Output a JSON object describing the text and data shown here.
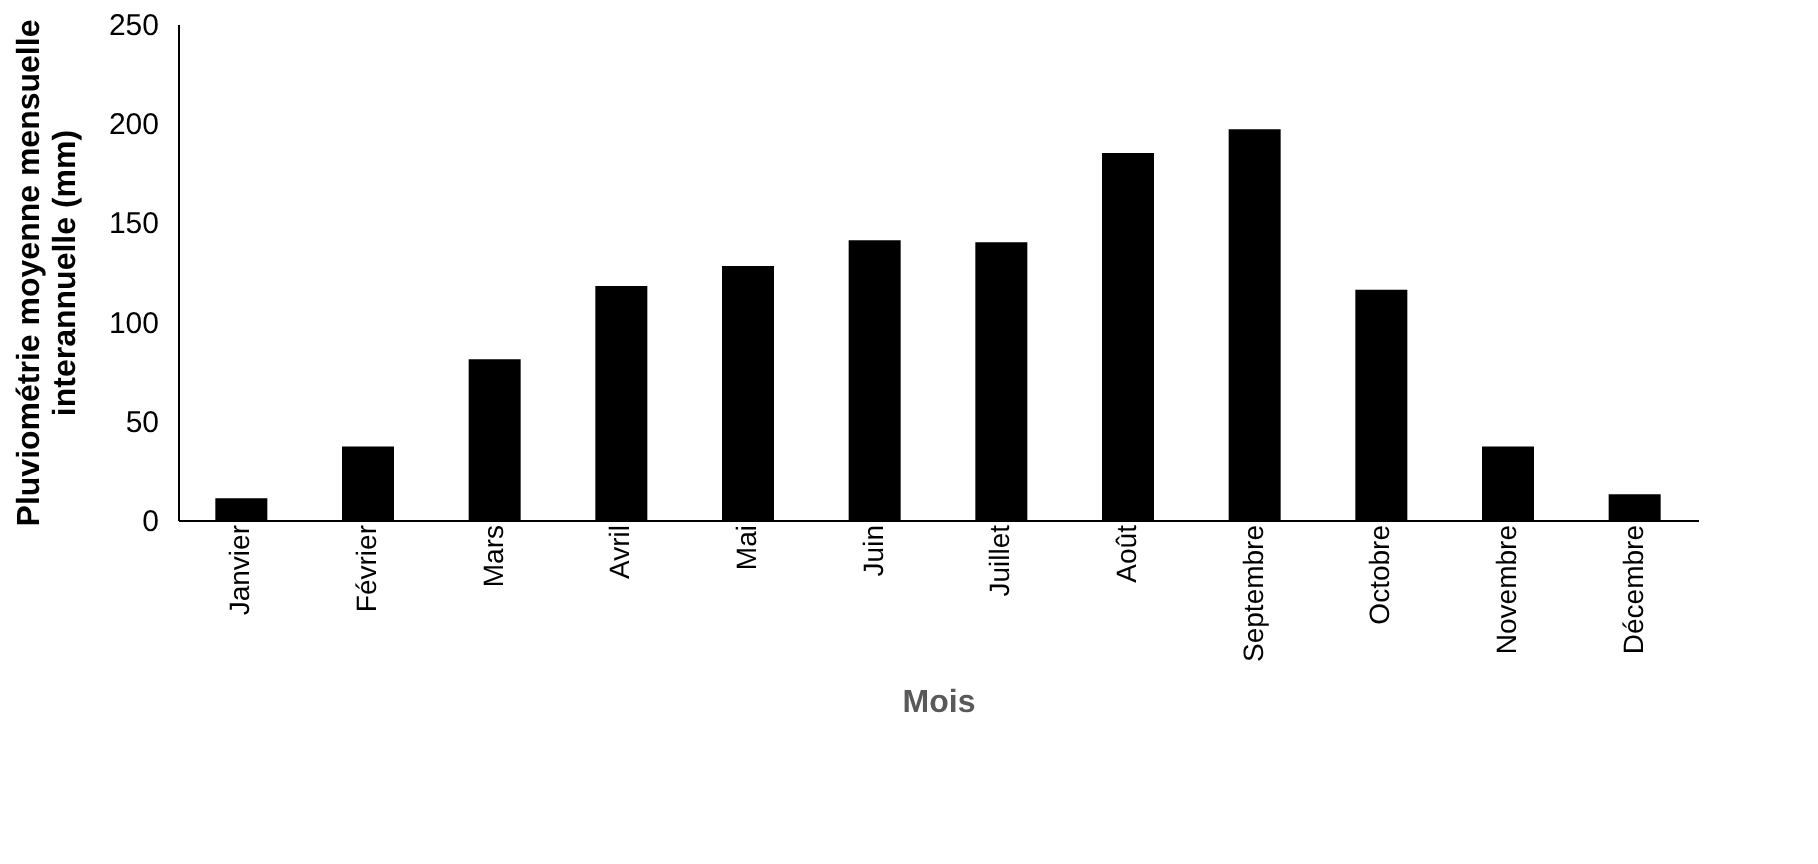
{
  "chart_data": {
    "type": "bar",
    "xlabel": "Mois",
    "ylabel": "Pluviométrie moyenne mensuelle\ninterannuelle (mm)",
    "categories": [
      "Janvier",
      "Février",
      "Mars",
      "Avril",
      "Mai",
      "Juin",
      "Juillet",
      "Août",
      "Septembre",
      "Octobre",
      "Novembre",
      "Décembre"
    ],
    "values": [
      11,
      37,
      81,
      118,
      128,
      141,
      140,
      185,
      197,
      116,
      37,
      13
    ],
    "color": "#000000",
    "ylim": [
      0,
      250
    ],
    "yticks": [
      0,
      50,
      100,
      150,
      200,
      250
    ],
    "grid": false
  }
}
